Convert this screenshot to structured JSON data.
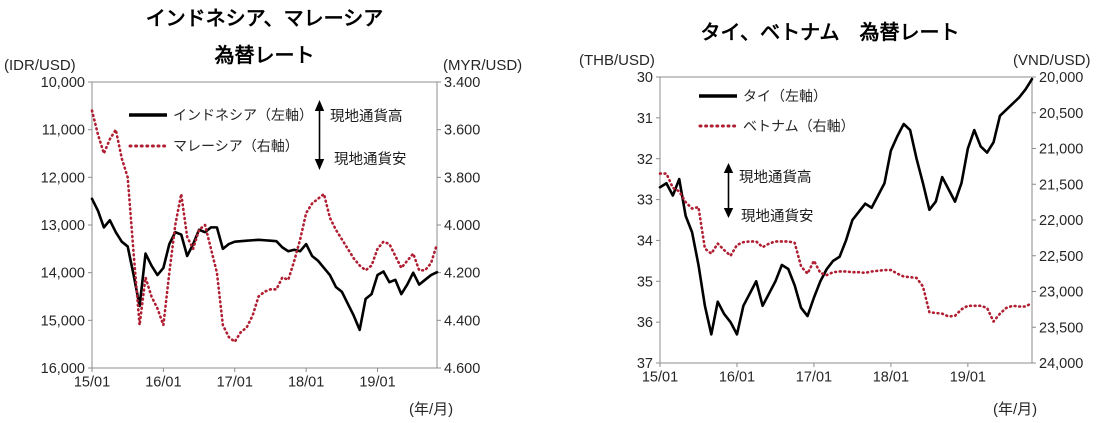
{
  "colors": {
    "series_solid": "#000000",
    "series_dotted": "#b01e32",
    "axis_line": "#8c8c8c",
    "tick_text": "#262626",
    "title_text": "#000000"
  },
  "chart_data": [
    {
      "type": "line",
      "title_lines": [
        "インドネシア、マレーシア",
        "為替レート"
      ],
      "left_axis": {
        "unit": "(IDR/USD)",
        "top": 10000,
        "bottom": 16000,
        "tick_labels": [
          "10,000",
          "11,000",
          "12,000",
          "13,000",
          "14,000",
          "15,000",
          "16,000"
        ],
        "tick_values": [
          10000,
          11000,
          12000,
          13000,
          14000,
          15000,
          16000
        ],
        "direction": "values increase downward (local currency depreciation)"
      },
      "right_axis": {
        "unit": "(MYR/USD)",
        "top": 3.4,
        "bottom": 4.6,
        "tick_labels": [
          "3.400",
          "3.600",
          "3.800",
          "4.000",
          "4.200",
          "4.400",
          "4.600"
        ],
        "tick_values": [
          3.4,
          3.6,
          3.8,
          4.0,
          4.2,
          4.4,
          4.6
        ]
      },
      "x_axis": {
        "start": "2015/01",
        "end": "2019/11",
        "step": "month",
        "note": "(年/月)",
        "ticks": [
          {
            "label": "15/01",
            "month_index": 0
          },
          {
            "label": "16/01",
            "month_index": 12
          },
          {
            "label": "17/01",
            "month_index": 24
          },
          {
            "label": "18/01",
            "month_index": 36
          },
          {
            "label": "19/01",
            "month_index": 48
          }
        ]
      },
      "annotation": {
        "up_label": "現地通貨高",
        "down_label": "現地通貨安"
      },
      "series": [
        {
          "name": "インドネシア（左軸）",
          "key": "indonesia",
          "axis": "left",
          "style": "solid",
          "color": "#000000",
          "values": [
            12450,
            12700,
            13050,
            12900,
            13150,
            13350,
            13450,
            14050,
            14700,
            13600,
            13850,
            14050,
            13900,
            13400,
            13150,
            13200,
            13650,
            13400,
            13100,
            13150,
            13050,
            13050,
            13500,
            13400,
            13350,
            13340,
            13330,
            13320,
            13310,
            13320,
            13330,
            13340,
            13470,
            13550,
            13520,
            13550,
            13400,
            13650,
            13750,
            13900,
            14050,
            14300,
            14400,
            14650,
            14900,
            15200,
            14550,
            14450,
            14050,
            13975,
            14200,
            14150,
            14450,
            14250,
            14000,
            14250,
            14150,
            14050,
            13990
          ]
        },
        {
          "name": "マレーシア（右軸）",
          "key": "malaysia",
          "axis": "right",
          "style": "dotted",
          "color": "#b01e32",
          "values": [
            3.52,
            3.62,
            3.7,
            3.64,
            3.6,
            3.72,
            3.8,
            4.12,
            4.42,
            4.22,
            4.3,
            4.35,
            4.42,
            4.2,
            4.0,
            3.87,
            4.05,
            4.1,
            4.02,
            4.0,
            4.1,
            4.2,
            4.42,
            4.47,
            4.49,
            4.45,
            4.43,
            4.38,
            4.3,
            4.28,
            4.27,
            4.27,
            4.22,
            4.23,
            4.15,
            4.06,
            3.95,
            3.91,
            3.89,
            3.87,
            3.97,
            4.02,
            4.06,
            4.1,
            4.14,
            4.17,
            4.19,
            4.17,
            4.1,
            4.07,
            4.08,
            4.13,
            4.18,
            4.15,
            4.12,
            4.19,
            4.19,
            4.16,
            4.08
          ]
        }
      ]
    },
    {
      "type": "line",
      "title_lines": [
        "タイ、ベトナム　為替レート"
      ],
      "left_axis": {
        "unit": "(THB/USD)",
        "top": 30,
        "bottom": 37,
        "tick_labels": [
          "30",
          "31",
          "32",
          "33",
          "34",
          "35",
          "36",
          "37"
        ],
        "tick_values": [
          30,
          31,
          32,
          33,
          34,
          35,
          36,
          37
        ],
        "direction": "values increase downward (local currency depreciation)"
      },
      "right_axis": {
        "unit": "(VND/USD)",
        "top": 20000,
        "bottom": 24000,
        "tick_labels": [
          "20,000",
          "20,500",
          "21,000",
          "21,500",
          "22,000",
          "22,500",
          "23,000",
          "23,500",
          "24,000"
        ],
        "tick_values": [
          20000,
          20500,
          21000,
          21500,
          22000,
          22500,
          23000,
          23500,
          24000
        ]
      },
      "x_axis": {
        "start": "2015/01",
        "end": "2019/11",
        "step": "month",
        "note": "(年/月)",
        "ticks": [
          {
            "label": "15/01",
            "month_index": 0
          },
          {
            "label": "16/01",
            "month_index": 12
          },
          {
            "label": "17/01",
            "month_index": 24
          },
          {
            "label": "18/01",
            "month_index": 36
          },
          {
            "label": "19/01",
            "month_index": 48
          }
        ]
      },
      "annotation": {
        "up_label": "現地通貨高",
        "down_label": "現地通貨安"
      },
      "series": [
        {
          "name": "タイ（左軸）",
          "key": "thailand",
          "axis": "left",
          "style": "solid",
          "color": "#000000",
          "values": [
            32.7,
            32.6,
            32.9,
            32.5,
            33.4,
            33.8,
            34.6,
            35.6,
            36.3,
            35.5,
            35.8,
            36.0,
            36.3,
            35.6,
            35.3,
            35.0,
            35.6,
            35.3,
            35.0,
            34.6,
            34.7,
            35.1,
            35.65,
            35.85,
            35.4,
            35.0,
            34.7,
            34.5,
            34.4,
            34.0,
            33.5,
            33.3,
            33.1,
            33.2,
            32.9,
            32.6,
            31.8,
            31.45,
            31.15,
            31.3,
            32.0,
            32.6,
            33.25,
            33.05,
            32.45,
            32.75,
            33.05,
            32.6,
            31.75,
            31.3,
            31.7,
            31.85,
            31.6,
            30.95,
            30.8,
            30.65,
            30.5,
            30.3,
            30.05
          ]
        },
        {
          "name": "ベトナム（右軸）",
          "key": "vietnam",
          "axis": "right",
          "style": "dotted",
          "color": "#b01e32",
          "values": [
            21350,
            21350,
            21550,
            21600,
            21750,
            21840,
            21820,
            22400,
            22470,
            22330,
            22420,
            22500,
            22350,
            22310,
            22300,
            22300,
            22380,
            22330,
            22300,
            22300,
            22300,
            22320,
            22650,
            22750,
            22570,
            22740,
            22770,
            22730,
            22720,
            22720,
            22730,
            22730,
            22740,
            22720,
            22710,
            22700,
            22700,
            22750,
            22790,
            22800,
            22810,
            22930,
            23290,
            23300,
            23310,
            23350,
            23340,
            23250,
            23200,
            23200,
            23200,
            23230,
            23420,
            23310,
            23230,
            23200,
            23210,
            23210,
            23160
          ]
        }
      ]
    }
  ]
}
